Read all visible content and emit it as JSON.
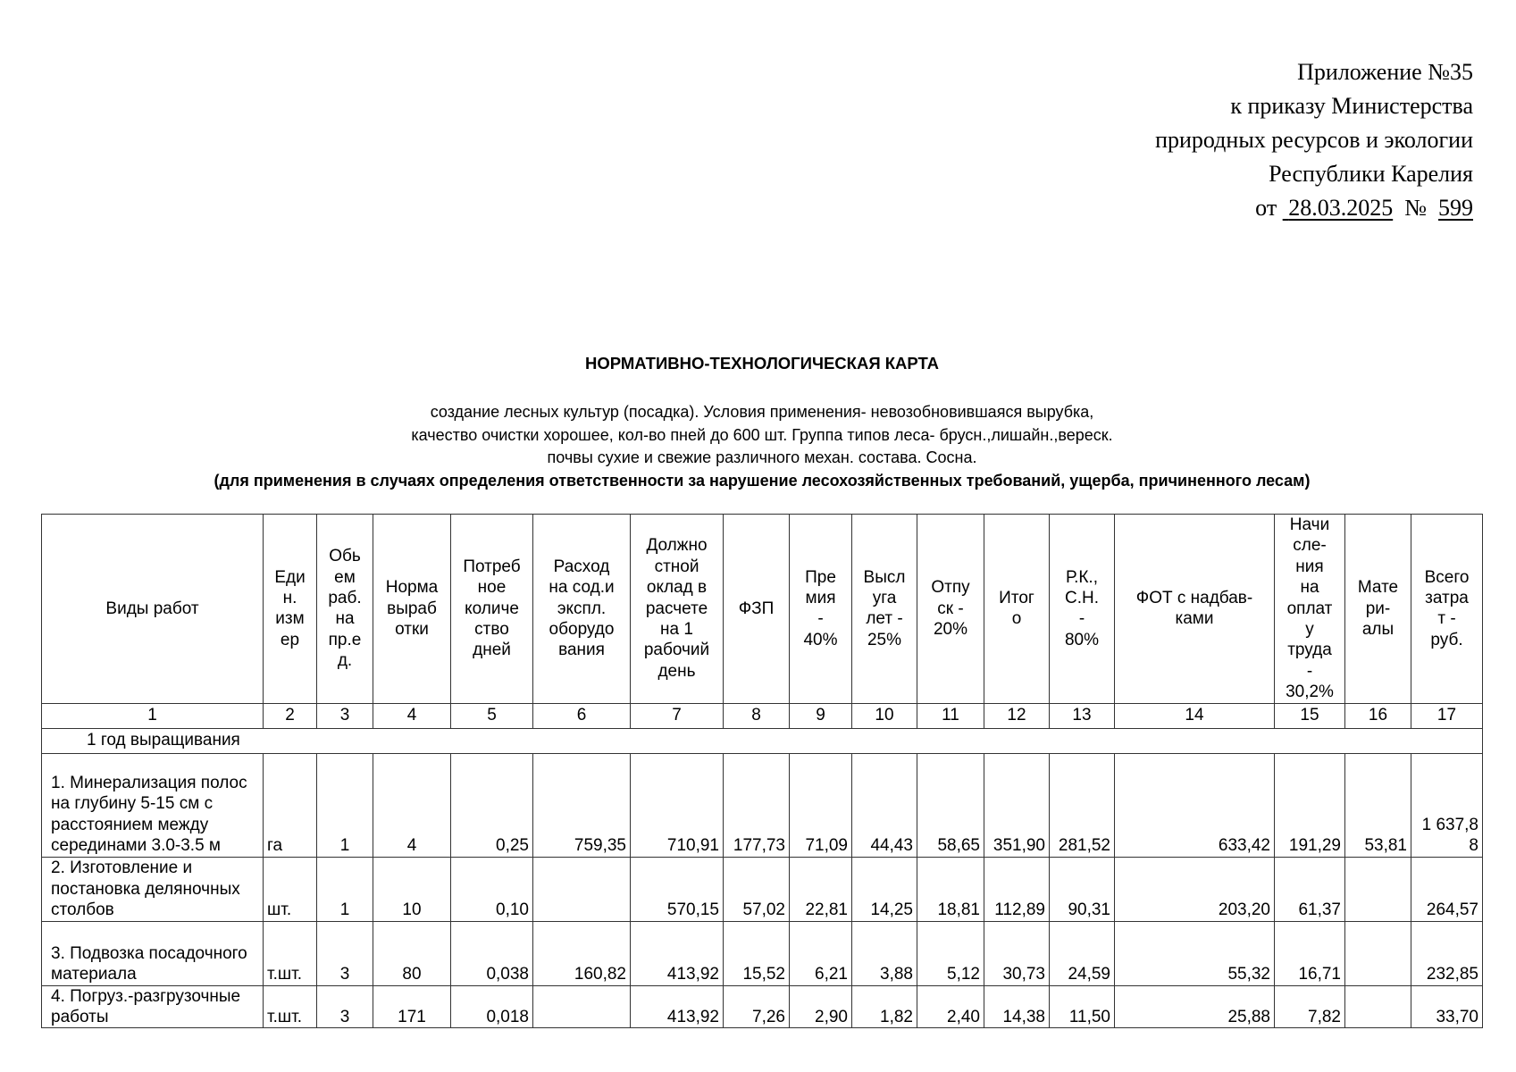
{
  "approval": {
    "line1": "Приложение №35",
    "line2": "к приказу Министерства",
    "line3": "природных ресурсов и экологии",
    "line4": "Республики Карелия",
    "from_label": "от",
    "date": "28.03.2025",
    "number_label": "№",
    "number": "599"
  },
  "title": "НОРМАТИВНО-ТЕХНОЛОГИЧЕСКАЯ КАРТА",
  "subtitle": {
    "line1": "создание лесных культур (посадка). Условия применения- невозобновившаяся вырубка,",
    "line2": "качество очистки хорошее, кол-во пней до 600 шт. Группа типов леса- брусн.,лишайн.,вереск.",
    "line3": "почвы сухие и свежие различного механ. состава. Сосна.",
    "line4": "(для применения в случаях определения ответственности за нарушение лесохозяйственных требований, ущерба, причиненного лесам)"
  },
  "table": {
    "headers": [
      "Виды работ",
      "Еди\nн.\nизм\nер",
      "Обь\nем\nраб.\nна\nпр.е\nд.",
      "Норма\nвыраб\nотки",
      "Потреб\nное\nколиче\nство\nдней",
      "Расход\nна сод.и\nэкспл.\nоборудо\nвания",
      "Должно\nстной\nоклад в\nрасчете\nна 1\nрабочий\nдень",
      "ФЗП",
      "Пре\nмия\n-\n40%",
      "Высл\nуга\nлет -\n25%",
      "Отпу\nск -\n20%",
      "Итог\nо",
      "Р.К.,\nС.Н.\n-\n80%",
      "ФОТ с надбав-\nками",
      "Начи\nсле-\nния\nна\nоплат\nу\nтруда\n-\n30,2%",
      "Мате\nри-\nалы",
      "Всего\nзатра\nт -\nруб."
    ],
    "column_numbers": [
      "1",
      "2",
      "3",
      "4",
      "5",
      "6",
      "7",
      "8",
      "9",
      "10",
      "11",
      "12",
      "13",
      "14",
      "15",
      "16",
      "17"
    ],
    "section": "1 год выращивания",
    "rows": [
      [
        "1. Минерализация полос на глубину 5-15 см с расстоянием между серединами 3.0-3.5 м",
        "га",
        "1",
        "4",
        "0,25",
        "759,35",
        "710,91",
        "177,73",
        "71,09",
        "44,43",
        "58,65",
        "351,90",
        "281,52",
        "633,42",
        "191,29",
        "53,81",
        "1 637,88"
      ],
      [
        "2. Изготовление и постановка деляночных столбов",
        "шт.",
        "1",
        "10",
        "0,10",
        "",
        "570,15",
        "57,02",
        "22,81",
        "14,25",
        "18,81",
        "112,89",
        "90,31",
        "203,20",
        "61,37",
        "",
        "264,57"
      ],
      [
        "3. Подвозка посадочного материала",
        "т.шт.",
        "3",
        "80",
        "0,038",
        "160,82",
        "413,92",
        "15,52",
        "6,21",
        "3,88",
        "5,12",
        "30,73",
        "24,59",
        "55,32",
        "16,71",
        "",
        "232,85"
      ],
      [
        "4. Погруз.-разгрузочные работы",
        "т.шт.",
        "3",
        "171",
        "0,018",
        "",
        "413,92",
        "7,26",
        "2,90",
        "1,82",
        "2,40",
        "14,38",
        "11,50",
        "25,88",
        "7,82",
        "",
        "33,70"
      ]
    ]
  }
}
